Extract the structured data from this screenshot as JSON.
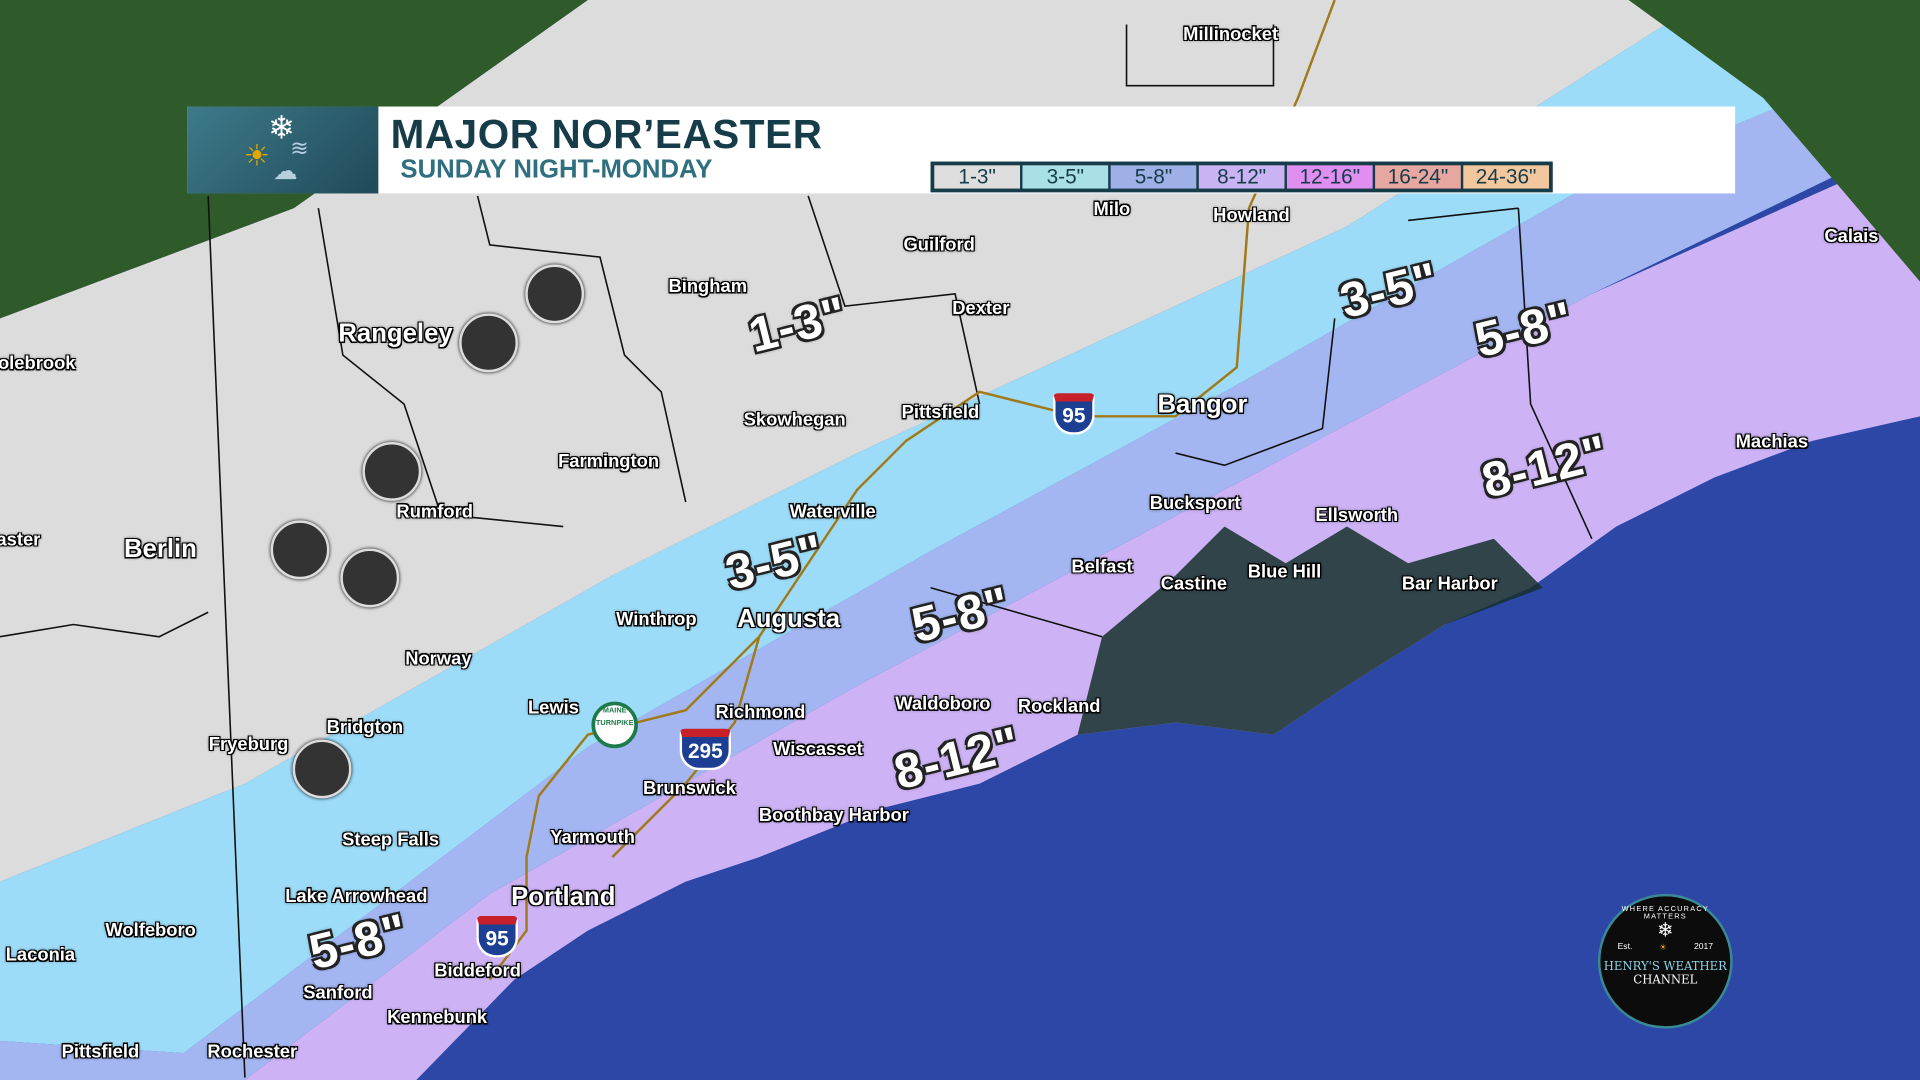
{
  "header": {
    "title": "MAJOR NOR’EASTER",
    "subtitle": "SUNDAY NIGHT-MONDAY",
    "icon": "snow-sun-wind-storm-icon"
  },
  "legend": [
    {
      "label": "1-3\"",
      "color": "#dedede"
    },
    {
      "label": "3-5\"",
      "color": "#a9dfe6"
    },
    {
      "label": "5-8\"",
      "color": "#9fb0e6"
    },
    {
      "label": "8-12\"",
      "color": "#c9b3f2"
    },
    {
      "label": "12-16\"",
      "color": "#e08ef0"
    },
    {
      "label": "16-24\"",
      "color": "#e8a6a0"
    },
    {
      "label": "24-36\"",
      "color": "#f3c79e"
    }
  ],
  "map_colors": {
    "band_1_3": "#dcdcdc",
    "band_3_5": "#9ddcf8",
    "band_5_8": "#a3b6f2",
    "band_8_12": "#cdb3f5",
    "ocean": "#2c47a6",
    "land_satellite": "#2f5a2a",
    "coast_dark": "#15302c"
  },
  "snow_labels": [
    "1-3\"",
    "3-5\"",
    "5-8\"",
    "8-12\"",
    "3-5\"",
    "5-8\"",
    "8-12\"",
    "5-8\""
  ],
  "cities": [
    "Millinocket",
    "Milo",
    "Howland",
    "Guilford",
    "Bingham",
    "Dexter",
    "Calais",
    "Rangeley",
    "olebrook",
    "Skowhegan",
    "Pittsfield",
    "Bangor",
    "Farmington",
    "Machias",
    "Rumford",
    "Bucksport",
    "Ellsworth",
    "Waterville",
    "aster",
    "Berlin",
    "Belfast",
    "Castine",
    "Blue Hill",
    "Bar Harbor",
    "Winthrop",
    "Augusta",
    "Norway",
    "Lewis",
    "Richmond",
    "Waldoboro",
    "Rockland",
    "Bridgton",
    "Fryeburg",
    "Wiscasset",
    "Brunswick",
    "Boothbay Harbor",
    "Steep Falls",
    "Yarmouth",
    "Portland",
    "Lake Arrowhead",
    "Wolfeboro",
    "Laconia",
    "Biddeford",
    "Sanford",
    "Kennebunk",
    "Pittsfield",
    "Rochester"
  ],
  "shields": {
    "i95": "95",
    "i295": "295",
    "turnpike": "MAINE TURNPIKE"
  },
  "logo": {
    "arc_text": "WHERE ACCURACY MATTERS",
    "est": "Est.",
    "year": "2017",
    "name1": "HENRY'S WEATHER",
    "name2": "CHANNEL"
  }
}
